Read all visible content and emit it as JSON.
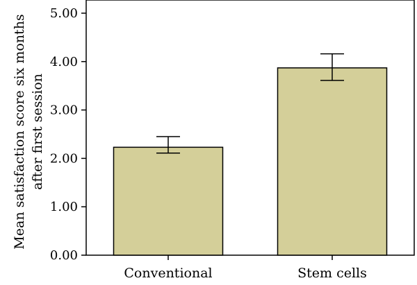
{
  "chart_data": {
    "type": "bar",
    "categories": [
      "Conventional",
      "Stem cells"
    ],
    "values": [
      2.23,
      3.87
    ],
    "error_low": [
      2.11,
      3.61
    ],
    "error_high": [
      2.45,
      4.16
    ],
    "ylim": [
      0,
      5
    ],
    "yticks": [
      "0.00",
      "1.00",
      "2.00",
      "3.00",
      "4.00",
      "5.00"
    ],
    "ylabel_lines": [
      "Mean satisfaction score six months",
      "after first session"
    ],
    "xlabel": "",
    "title": "",
    "bar_color": "#d4cf99",
    "grid": false,
    "legend": "none"
  }
}
